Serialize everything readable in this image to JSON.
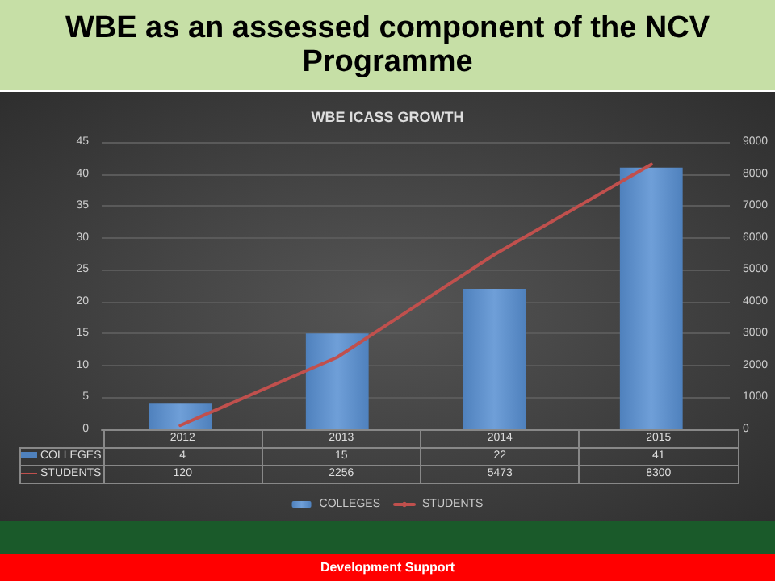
{
  "chart_data": {
    "type": "bar",
    "title": "WBE as an assessed component of the NCV Programme",
    "subtitle": "WBE ICASS GROWTH",
    "categories": [
      "2012",
      "2013",
      "2014",
      "2015"
    ],
    "series": [
      {
        "name": "COLLEGES",
        "color": "#4f81bd",
        "values": [
          4,
          15,
          22,
          41
        ]
      },
      {
        "name": "STUDENTS",
        "type": "line",
        "axis": "y2",
        "color": "#c0504d",
        "values": [
          120,
          2256,
          5473,
          8300
        ]
      }
    ],
    "ylim": [
      0,
      45
    ],
    "yticks": [
      0,
      5,
      10,
      15,
      20,
      25,
      30,
      35,
      40,
      45
    ],
    "y2lim": [
      0,
      9000
    ],
    "y2ticks": [
      0,
      1000,
      2000,
      3000,
      4000,
      5000,
      6000,
      7000,
      8000,
      9000
    ],
    "grid": "y",
    "legend": "bottom",
    "marker": "none",
    "data_labels": true,
    "annotations": [
      "Development Support"
    ]
  }
}
